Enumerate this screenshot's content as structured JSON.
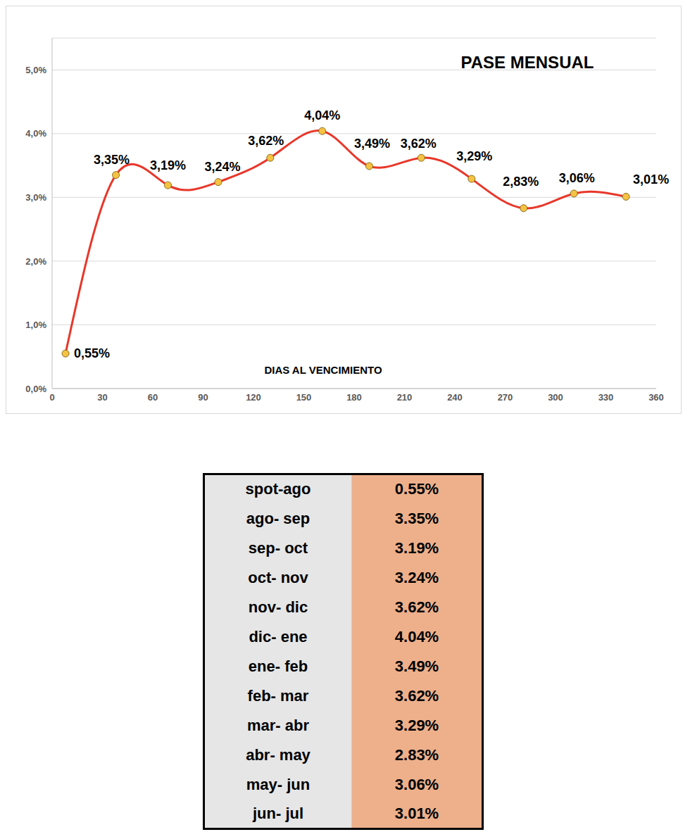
{
  "chart_data": {
    "type": "line",
    "title": "PASE MENSUAL",
    "xlabel": "DIAS AL VENCIMIENTO",
    "x": [
      8,
      38,
      69,
      99,
      130,
      161,
      189,
      220,
      250,
      281,
      311,
      342
    ],
    "values": [
      0.55,
      3.35,
      3.19,
      3.24,
      3.62,
      4.04,
      3.49,
      3.62,
      3.29,
      2.83,
      3.06,
      3.01
    ],
    "value_labels": [
      "0,55%",
      "3,35%",
      "3,19%",
      "3,24%",
      "3,62%",
      "4,04%",
      "3,49%",
      "3,62%",
      "3,29%",
      "2,83%",
      "3,06%",
      "3,01%"
    ],
    "color": "#e8372a",
    "marker": "circle",
    "line_style": "solid",
    "data_labels": true,
    "xlim": [
      0,
      360
    ],
    "xticks": [
      0,
      30,
      60,
      90,
      120,
      150,
      180,
      210,
      240,
      270,
      300,
      330,
      360
    ],
    "ylim": [
      0,
      5.5
    ],
    "yticks": [
      {
        "value": 0,
        "label": "0,0%"
      },
      {
        "value": 1,
        "label": "1,0%"
      },
      {
        "value": 2,
        "label": "2,0%"
      },
      {
        "value": 3,
        "label": "3,0%"
      },
      {
        "value": 4,
        "label": "4,0%"
      },
      {
        "value": 5,
        "label": "5,0%"
      }
    ],
    "grid": true
  },
  "table": {
    "rows": [
      [
        "spot-ago",
        "0.55%"
      ],
      [
        "ago- sep",
        "3.35%"
      ],
      [
        "sep- oct",
        "3.19%"
      ],
      [
        "oct- nov",
        "3.24%"
      ],
      [
        "nov- dic",
        "3.62%"
      ],
      [
        "dic- ene",
        "4.04%"
      ],
      [
        "ene- feb",
        "3.49%"
      ],
      [
        "feb- mar",
        "3.62%"
      ],
      [
        "mar- abr",
        "3.29%"
      ],
      [
        "abr- may",
        "2.83%"
      ],
      [
        "may- jun",
        "3.06%"
      ],
      [
        "jun- jul",
        "3.01%"
      ]
    ]
  }
}
